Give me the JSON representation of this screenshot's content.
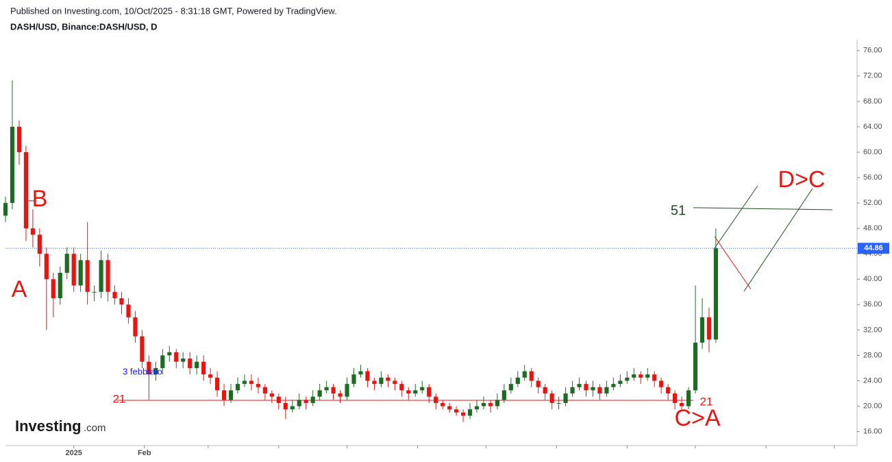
{
  "chart_data": {
    "type": "candlestick",
    "title": "Published on Investing.com, 10/Oct/2025 - 8:31:18 GMT, Powered by TradingView.",
    "subtitle": "DASH/USD, Binance:DASH/USD, D",
    "logo": {
      "brand": "Investing",
      "suffix": ".com"
    },
    "up_color": "#1e6b23",
    "down_color": "#e8140f",
    "grid": false,
    "xlim": [
      -30,
      344
    ],
    "xticks": [
      {
        "value": 0,
        "label": "2025"
      },
      {
        "value": 31,
        "label": "Feb"
      },
      {
        "value": 59,
        "label": null
      },
      {
        "value": 90,
        "label": null
      },
      {
        "value": 120,
        "label": null
      },
      {
        "value": 151,
        "label": null
      },
      {
        "value": 181,
        "label": null
      },
      {
        "value": 212,
        "label": null
      },
      {
        "value": 243,
        "label": null
      },
      {
        "value": 273,
        "label": null
      },
      {
        "value": 304,
        "label": null
      },
      {
        "value": 334,
        "label": null
      }
    ],
    "ylim": [
      13.8,
      77.7
    ],
    "yticks": [
      {
        "value": 16,
        "label": "16.00"
      },
      {
        "value": 20,
        "label": "20.00"
      },
      {
        "value": 24,
        "label": "24.00"
      },
      {
        "value": 28,
        "label": "28.00"
      },
      {
        "value": 32,
        "label": "32.00"
      },
      {
        "value": 36,
        "label": "36.00"
      },
      {
        "value": 40,
        "label": "40.00"
      },
      {
        "value": 44,
        "label": "44.00"
      },
      {
        "value": 48,
        "label": "48.00"
      },
      {
        "value": 52,
        "label": "52.00"
      },
      {
        "value": 56,
        "label": "56.00"
      },
      {
        "value": 60,
        "label": "60.00"
      },
      {
        "value": 64,
        "label": "64.00"
      },
      {
        "value": 68,
        "label": "68.00"
      },
      {
        "value": 72,
        "label": "72.00"
      },
      {
        "value": 76,
        "label": "76.00"
      }
    ],
    "last_price": 44.86,
    "last_price_color": "#2962ff",
    "x": [
      -30,
      -27,
      -24,
      -21,
      -18,
      -15,
      -12,
      -9,
      -6,
      -3,
      0,
      3,
      6,
      9,
      12,
      15,
      18,
      21,
      24,
      27,
      30,
      33,
      36,
      39,
      42,
      45,
      48,
      51,
      54,
      57,
      60,
      63,
      66,
      69,
      72,
      75,
      78,
      81,
      84,
      87,
      90,
      93,
      96,
      99,
      102,
      105,
      108,
      111,
      114,
      117,
      120,
      123,
      126,
      129,
      132,
      135,
      138,
      141,
      144,
      147,
      150,
      153,
      156,
      159,
      162,
      165,
      168,
      171,
      174,
      177,
      180,
      183,
      186,
      189,
      192,
      195,
      198,
      201,
      204,
      207,
      210,
      213,
      216,
      219,
      222,
      225,
      228,
      231,
      234,
      237,
      240,
      243,
      246,
      249,
      252,
      255,
      258,
      261,
      264,
      267,
      270,
      273,
      276,
      279,
      282
    ],
    "open": [
      50,
      52,
      64,
      60,
      48,
      47,
      44,
      40,
      37,
      41,
      44,
      39,
      43,
      38,
      38,
      43,
      38,
      37,
      36,
      34,
      31,
      27,
      25,
      26,
      28,
      28.5,
      27,
      27.5,
      26,
      27,
      25,
      24.5,
      22.5,
      21,
      22.5,
      23.5,
      24,
      23.5,
      23,
      22,
      21.5,
      20.5,
      19.5,
      20,
      21,
      20.5,
      21.5,
      22.5,
      23,
      22,
      21.5,
      23.5,
      25,
      25.5,
      24,
      23.5,
      24.5,
      24,
      23.5,
      22.5,
      22,
      22.5,
      23,
      21.5,
      20.5,
      20,
      19.5,
      19,
      18.5,
      19.5,
      20,
      20.5,
      20,
      21,
      22.5,
      23.5,
      24.5,
      25.5,
      24,
      23,
      22,
      20.5,
      20.5,
      22,
      23,
      23.5,
      22.5,
      23,
      22,
      23,
      23.5,
      24,
      24.5,
      25,
      24.5,
      25,
      24,
      23,
      22,
      20.5,
      20,
      22.5,
      30,
      34,
      30.5
    ],
    "high": [
      53,
      71.3,
      65,
      61,
      51,
      48,
      45,
      41,
      42,
      45,
      45,
      44,
      49,
      39,
      44.5,
      44,
      39,
      38,
      37,
      35,
      32,
      28,
      27,
      29,
      29.5,
      29,
      28.5,
      28.5,
      28,
      28,
      26,
      25.5,
      23.5,
      23.5,
      24.5,
      25,
      25,
      24.5,
      23.5,
      22.5,
      22,
      21.5,
      21,
      22,
      21.5,
      22.5,
      23.5,
      24,
      23.5,
      22.5,
      24.5,
      26,
      26.5,
      26,
      24.5,
      25.5,
      25,
      24.5,
      24,
      23,
      23.5,
      24,
      23.5,
      22,
      21,
      20.5,
      20,
      19.5,
      20.5,
      21,
      21.5,
      21,
      22,
      23.5,
      24.5,
      25.5,
      26.5,
      26,
      24.5,
      23.5,
      22.5,
      21.5,
      23,
      24,
      24.5,
      24,
      24,
      23.5,
      24,
      24.5,
      25,
      25.5,
      26,
      25.5,
      26,
      25.5,
      24.5,
      23.5,
      22.5,
      21.5,
      23,
      39,
      37,
      35.5,
      48
    ],
    "low": [
      49,
      51,
      58,
      46,
      45,
      42,
      32,
      34,
      36,
      40,
      38,
      38,
      36,
      36.5,
      37,
      36.5,
      36,
      34.5,
      33,
      30,
      26,
      21,
      24,
      25,
      27,
      26,
      26,
      25,
      25,
      24,
      23.5,
      21.5,
      20,
      20.5,
      22,
      23,
      22.5,
      22,
      21,
      20.5,
      19.5,
      18,
      19,
      19.5,
      19.5,
      20,
      21,
      22,
      21,
      20.5,
      21,
      23,
      24.5,
      23,
      22.5,
      23,
      23,
      22.5,
      21.5,
      21,
      21.5,
      22,
      20.5,
      19.5,
      19.5,
      19,
      18.5,
      17.5,
      18,
      19,
      19.5,
      19,
      19.5,
      20.5,
      22,
      23,
      24,
      23,
      22,
      21,
      19.5,
      19.5,
      20,
      21.5,
      22.5,
      21.5,
      21.5,
      21,
      21.5,
      22.5,
      23,
      23.5,
      24,
      23.5,
      24,
      23,
      22,
      21,
      19.5,
      19.5,
      19.5,
      22,
      29,
      28.5,
      30
    ],
    "close": [
      52,
      64,
      60,
      48,
      47,
      44,
      40,
      37,
      41,
      44,
      39,
      43,
      38,
      38,
      43,
      38,
      37,
      36,
      34,
      31,
      27,
      25,
      26,
      28,
      28.5,
      27,
      27.5,
      26,
      27,
      25,
      24.5,
      22.5,
      21,
      22.5,
      23.5,
      24,
      23.5,
      23,
      22,
      21.5,
      20.5,
      19.5,
      20,
      21,
      20.5,
      21.5,
      22.5,
      23,
      22,
      21.5,
      23.5,
      25,
      25.5,
      24,
      23.5,
      24.5,
      24,
      23.5,
      22.5,
      22,
      22.5,
      23,
      21.5,
      20.5,
      20,
      19.5,
      19,
      18.5,
      19.5,
      20,
      20.5,
      20,
      21,
      22.5,
      23.5,
      24.5,
      25.5,
      24,
      23,
      22,
      20.5,
      20.5,
      22,
      23,
      23.5,
      22.5,
      23,
      22,
      23,
      23.5,
      24,
      24.5,
      25,
      24.5,
      25,
      24,
      23,
      22,
      20.5,
      20,
      22.5,
      30,
      34,
      30.5,
      44.86
    ],
    "annotations": [
      "A",
      "B",
      "C>A",
      "D>C",
      "51",
      "21",
      "21",
      "3 febbraio"
    ]
  }
}
